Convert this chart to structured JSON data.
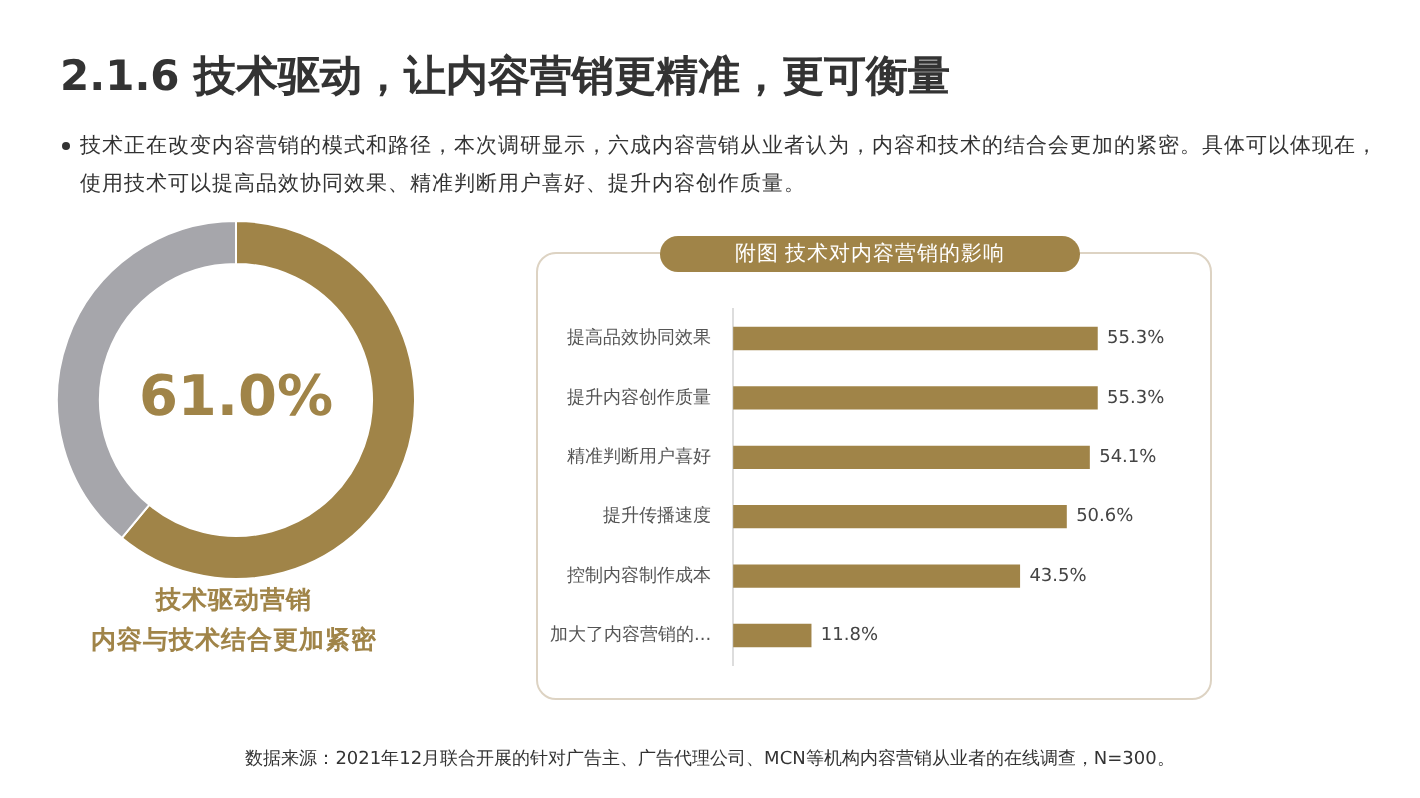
{
  "chart_data": [
    {
      "type": "donut",
      "title": "2.1.6 技术驱动，让内容营销更精准，更可衡量",
      "annotations": [
        "技术正在改变内容营销的模式和路径，本次调研显示，六成内容营销从业者认为，内容和技术的结合会更加的紧密。具体可以体现在，使用技术可以提高品效协同效果、精准判断用户喜好、提升内容创作质量。",
        "技术驱动营销",
        "内容与技术结合更加紧密"
      ],
      "categories": [
        null,
        null
      ],
      "values": [
        61.0,
        39.0
      ],
      "colors": [
        "#a08448",
        "#a6a6ab"
      ],
      "value_labels": [
        "61.0%",
        null
      ],
      "legend": false
    },
    {
      "type": "bar",
      "orientation": "horizontal",
      "title": "附图 技术对内容营销的影响",
      "categories": [
        "提高品效协同效果",
        "提升内容创作质量",
        "精准判断用户喜好",
        "提升传播速度",
        "控制内容制作成本",
        "加大了内容营销的..."
      ],
      "values": [
        55.3,
        55.3,
        54.1,
        50.6,
        43.5,
        11.8
      ],
      "color": "#a08448",
      "value_labels": [
        "55.3%",
        "55.3%",
        "54.1%",
        "50.6%",
        "43.5%",
        "11.8%"
      ],
      "legend": false,
      "annotations": [
        "数据来源：2021年12月联合开展的针对广告主、广告代理公司、MCN等机构内容营销从业者的在线调查，N=300。"
      ]
    }
  ]
}
